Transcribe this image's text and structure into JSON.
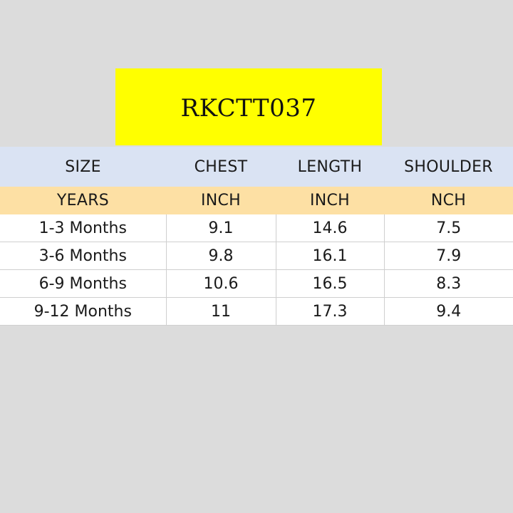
{
  "title": "RKCTT037",
  "colors": {
    "background": "#dcdcdc",
    "title_fill": "#ffff00",
    "header_fill": "#dae3f3",
    "units_fill": "#fde0a4",
    "cell_fill": "#ffffff"
  },
  "table": {
    "headers": [
      "SIZE",
      "CHEST",
      "LENGTH",
      "SHOULDER"
    ],
    "units": [
      "YEARS",
      "INCH",
      "INCH",
      "NCH"
    ],
    "rows": [
      [
        "1-3 Months",
        "9.1",
        "14.6",
        "7.5"
      ],
      [
        "3-6 Months",
        "9.8",
        "16.1",
        "7.9"
      ],
      [
        "6-9 Months",
        "10.6",
        "16.5",
        "8.3"
      ],
      [
        "9-12 Months",
        "11",
        "17.3",
        "9.4"
      ]
    ]
  }
}
